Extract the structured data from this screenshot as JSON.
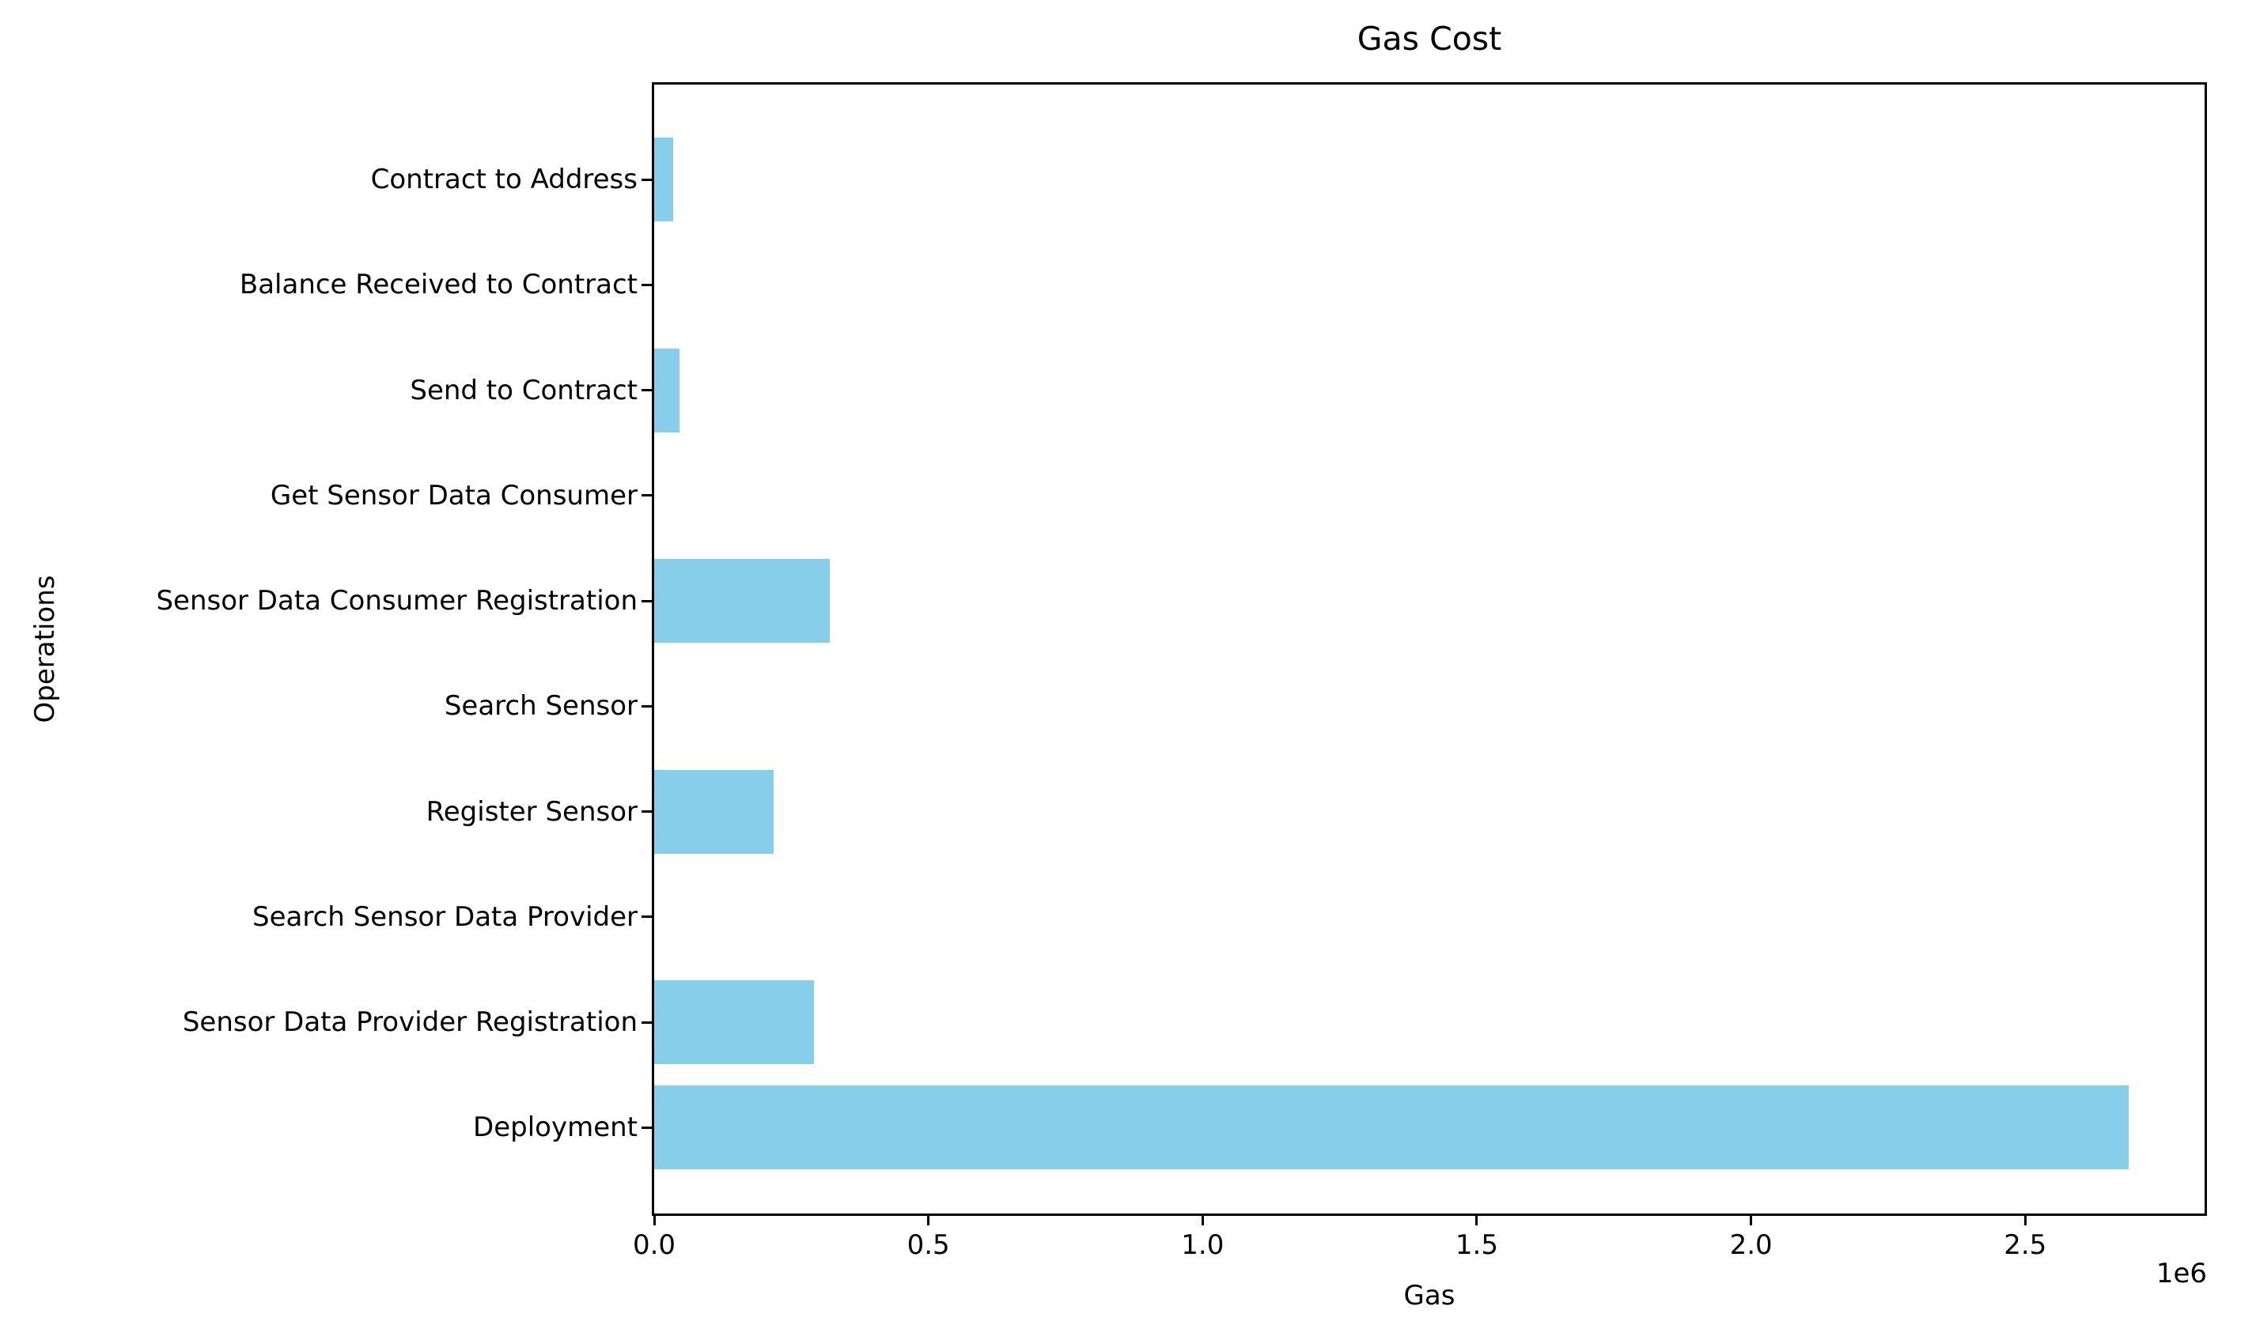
{
  "figure": {
    "title": "Gas Cost",
    "xlabel": "Gas",
    "ylabel": "Operations",
    "offset_label": "1e6",
    "bar_color": "#87CEEB",
    "axis_color": "#000000",
    "background_color": "#ffffff"
  },
  "chart_data": {
    "type": "bar",
    "orientation": "horizontal",
    "title": "Gas Cost",
    "xlabel": "Gas",
    "ylabel": "Operations",
    "categories_top_to_bottom": [
      "Contract to Address",
      "Balance Received to Contract",
      "Send to Contract",
      "Get Sensor Data Consumer",
      "Sensor Data Consumer Registration",
      "Search Sensor",
      "Register Sensor",
      "Search Sensor Data Provider",
      "Sensor Data Provider Registration",
      "Deployment"
    ],
    "values": [
      34500,
      0,
      46500,
      0,
      320000,
      0,
      217500,
      0,
      291000,
      2688000
    ],
    "xlim": [
      0,
      2827000
    ],
    "xticks": [
      0,
      500000,
      1000000,
      1500000,
      2000000,
      2500000
    ],
    "xtick_labels": [
      "0.0",
      "0.5",
      "1.0",
      "1.5",
      "2.0",
      "2.5"
    ],
    "x_offset_label": "1e6",
    "bar_color": "#87CEEB",
    "grid": false,
    "legend": null
  }
}
